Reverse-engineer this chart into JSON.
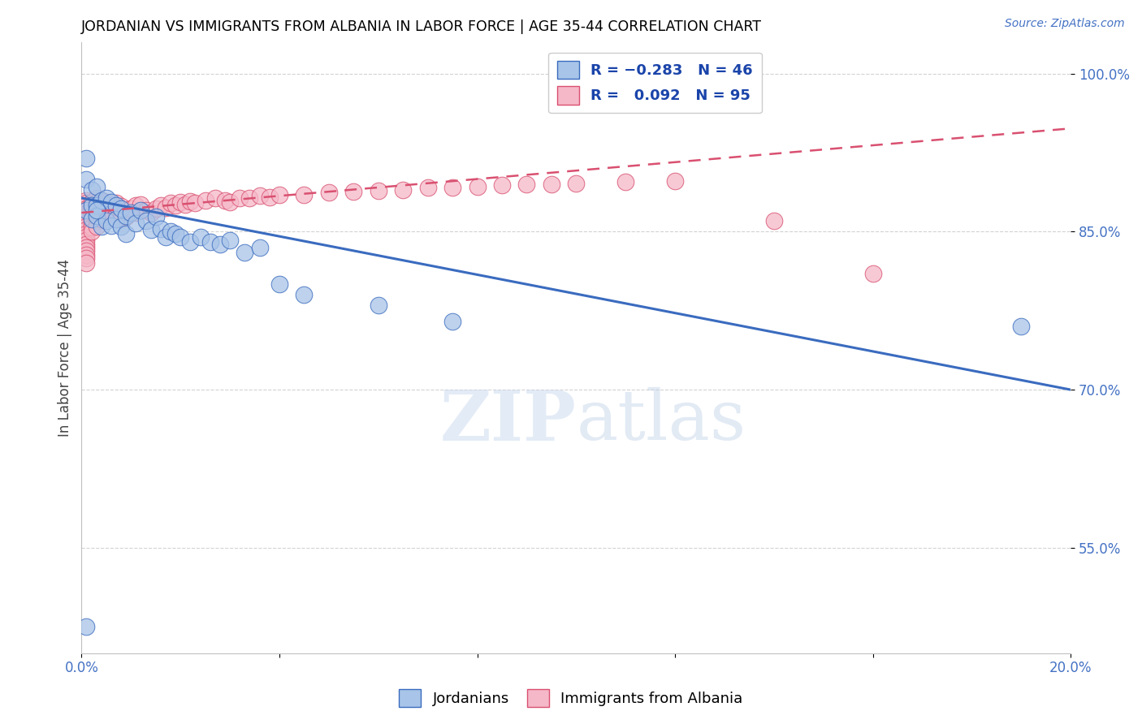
{
  "title": "JORDANIAN VS IMMIGRANTS FROM ALBANIA IN LABOR FORCE | AGE 35-44 CORRELATION CHART",
  "source": "Source: ZipAtlas.com",
  "ylabel_label": "In Labor Force | Age 35-44",
  "x_min": 0.0,
  "x_max": 0.2,
  "y_min": 0.45,
  "y_max": 1.03,
  "x_ticks": [
    0.0,
    0.04,
    0.08,
    0.12,
    0.16,
    0.2
  ],
  "x_tick_labels": [
    "0.0%",
    "",
    "",
    "",
    "",
    "20.0%"
  ],
  "y_ticks": [
    0.55,
    0.7,
    0.85,
    1.0
  ],
  "y_tick_labels": [
    "55.0%",
    "70.0%",
    "85.0%",
    "100.0%"
  ],
  "blue_color": "#a8c4e8",
  "pink_color": "#f5b8c8",
  "blue_line_color": "#3a6bbf",
  "pink_line_color": "#d95070",
  "watermark_zip": "ZIP",
  "watermark_atlas": "atlas",
  "blue_scatter_x": [
    0.001,
    0.001,
    0.001,
    0.002,
    0.002,
    0.002,
    0.003,
    0.003,
    0.003,
    0.004,
    0.004,
    0.005,
    0.005,
    0.006,
    0.006,
    0.007,
    0.007,
    0.008,
    0.008,
    0.009,
    0.009,
    0.01,
    0.011,
    0.012,
    0.013,
    0.014,
    0.015,
    0.016,
    0.017,
    0.018,
    0.019,
    0.02,
    0.022,
    0.024,
    0.026,
    0.028,
    0.03,
    0.033,
    0.036,
    0.04,
    0.045,
    0.06,
    0.075,
    0.19,
    0.001,
    0.003
  ],
  "blue_scatter_y": [
    0.92,
    0.9,
    0.87,
    0.89,
    0.875,
    0.862,
    0.893,
    0.875,
    0.865,
    0.88,
    0.855,
    0.882,
    0.86,
    0.878,
    0.856,
    0.875,
    0.862,
    0.872,
    0.855,
    0.865,
    0.848,
    0.868,
    0.858,
    0.87,
    0.86,
    0.852,
    0.864,
    0.853,
    0.845,
    0.85,
    0.848,
    0.845,
    0.84,
    0.845,
    0.84,
    0.838,
    0.842,
    0.83,
    0.835,
    0.8,
    0.79,
    0.78,
    0.765,
    0.76,
    0.475,
    0.87
  ],
  "pink_scatter_x": [
    0.001,
    0.001,
    0.001,
    0.001,
    0.001,
    0.001,
    0.001,
    0.001,
    0.001,
    0.001,
    0.001,
    0.001,
    0.001,
    0.001,
    0.001,
    0.001,
    0.001,
    0.001,
    0.001,
    0.001,
    0.002,
    0.002,
    0.002,
    0.002,
    0.002,
    0.002,
    0.002,
    0.002,
    0.003,
    0.003,
    0.003,
    0.003,
    0.003,
    0.003,
    0.003,
    0.004,
    0.004,
    0.004,
    0.004,
    0.004,
    0.005,
    0.005,
    0.005,
    0.005,
    0.006,
    0.006,
    0.006,
    0.007,
    0.007,
    0.007,
    0.008,
    0.008,
    0.008,
    0.009,
    0.009,
    0.01,
    0.011,
    0.011,
    0.012,
    0.013,
    0.014,
    0.015,
    0.016,
    0.017,
    0.018,
    0.019,
    0.02,
    0.021,
    0.022,
    0.023,
    0.025,
    0.027,
    0.029,
    0.03,
    0.032,
    0.034,
    0.036,
    0.038,
    0.04,
    0.045,
    0.05,
    0.055,
    0.06,
    0.065,
    0.07,
    0.075,
    0.08,
    0.085,
    0.09,
    0.095,
    0.1,
    0.11,
    0.12,
    0.14,
    0.16
  ],
  "pink_scatter_y": [
    0.88,
    0.877,
    0.875,
    0.872,
    0.87,
    0.867,
    0.865,
    0.862,
    0.858,
    0.855,
    0.852,
    0.848,
    0.845,
    0.842,
    0.838,
    0.835,
    0.832,
    0.828,
    0.825,
    0.82,
    0.878,
    0.874,
    0.87,
    0.866,
    0.862,
    0.858,
    0.854,
    0.85,
    0.882,
    0.878,
    0.874,
    0.87,
    0.865,
    0.86,
    0.855,
    0.88,
    0.876,
    0.872,
    0.867,
    0.862,
    0.878,
    0.873,
    0.868,
    0.862,
    0.876,
    0.87,
    0.864,
    0.877,
    0.872,
    0.866,
    0.874,
    0.868,
    0.862,
    0.87,
    0.864,
    0.872,
    0.875,
    0.868,
    0.876,
    0.87,
    0.868,
    0.872,
    0.875,
    0.873,
    0.877,
    0.875,
    0.878,
    0.876,
    0.879,
    0.877,
    0.88,
    0.882,
    0.88,
    0.878,
    0.882,
    0.882,
    0.884,
    0.883,
    0.885,
    0.885,
    0.887,
    0.888,
    0.889,
    0.89,
    0.892,
    0.892,
    0.893,
    0.894,
    0.895,
    0.895,
    0.896,
    0.897,
    0.898,
    0.86,
    0.81
  ],
  "blue_trend_x": [
    0.0,
    0.2
  ],
  "blue_trend_y": [
    0.882,
    0.7
  ],
  "pink_trend_x": [
    0.0,
    0.2
  ],
  "pink_trend_y": [
    0.868,
    0.948
  ]
}
